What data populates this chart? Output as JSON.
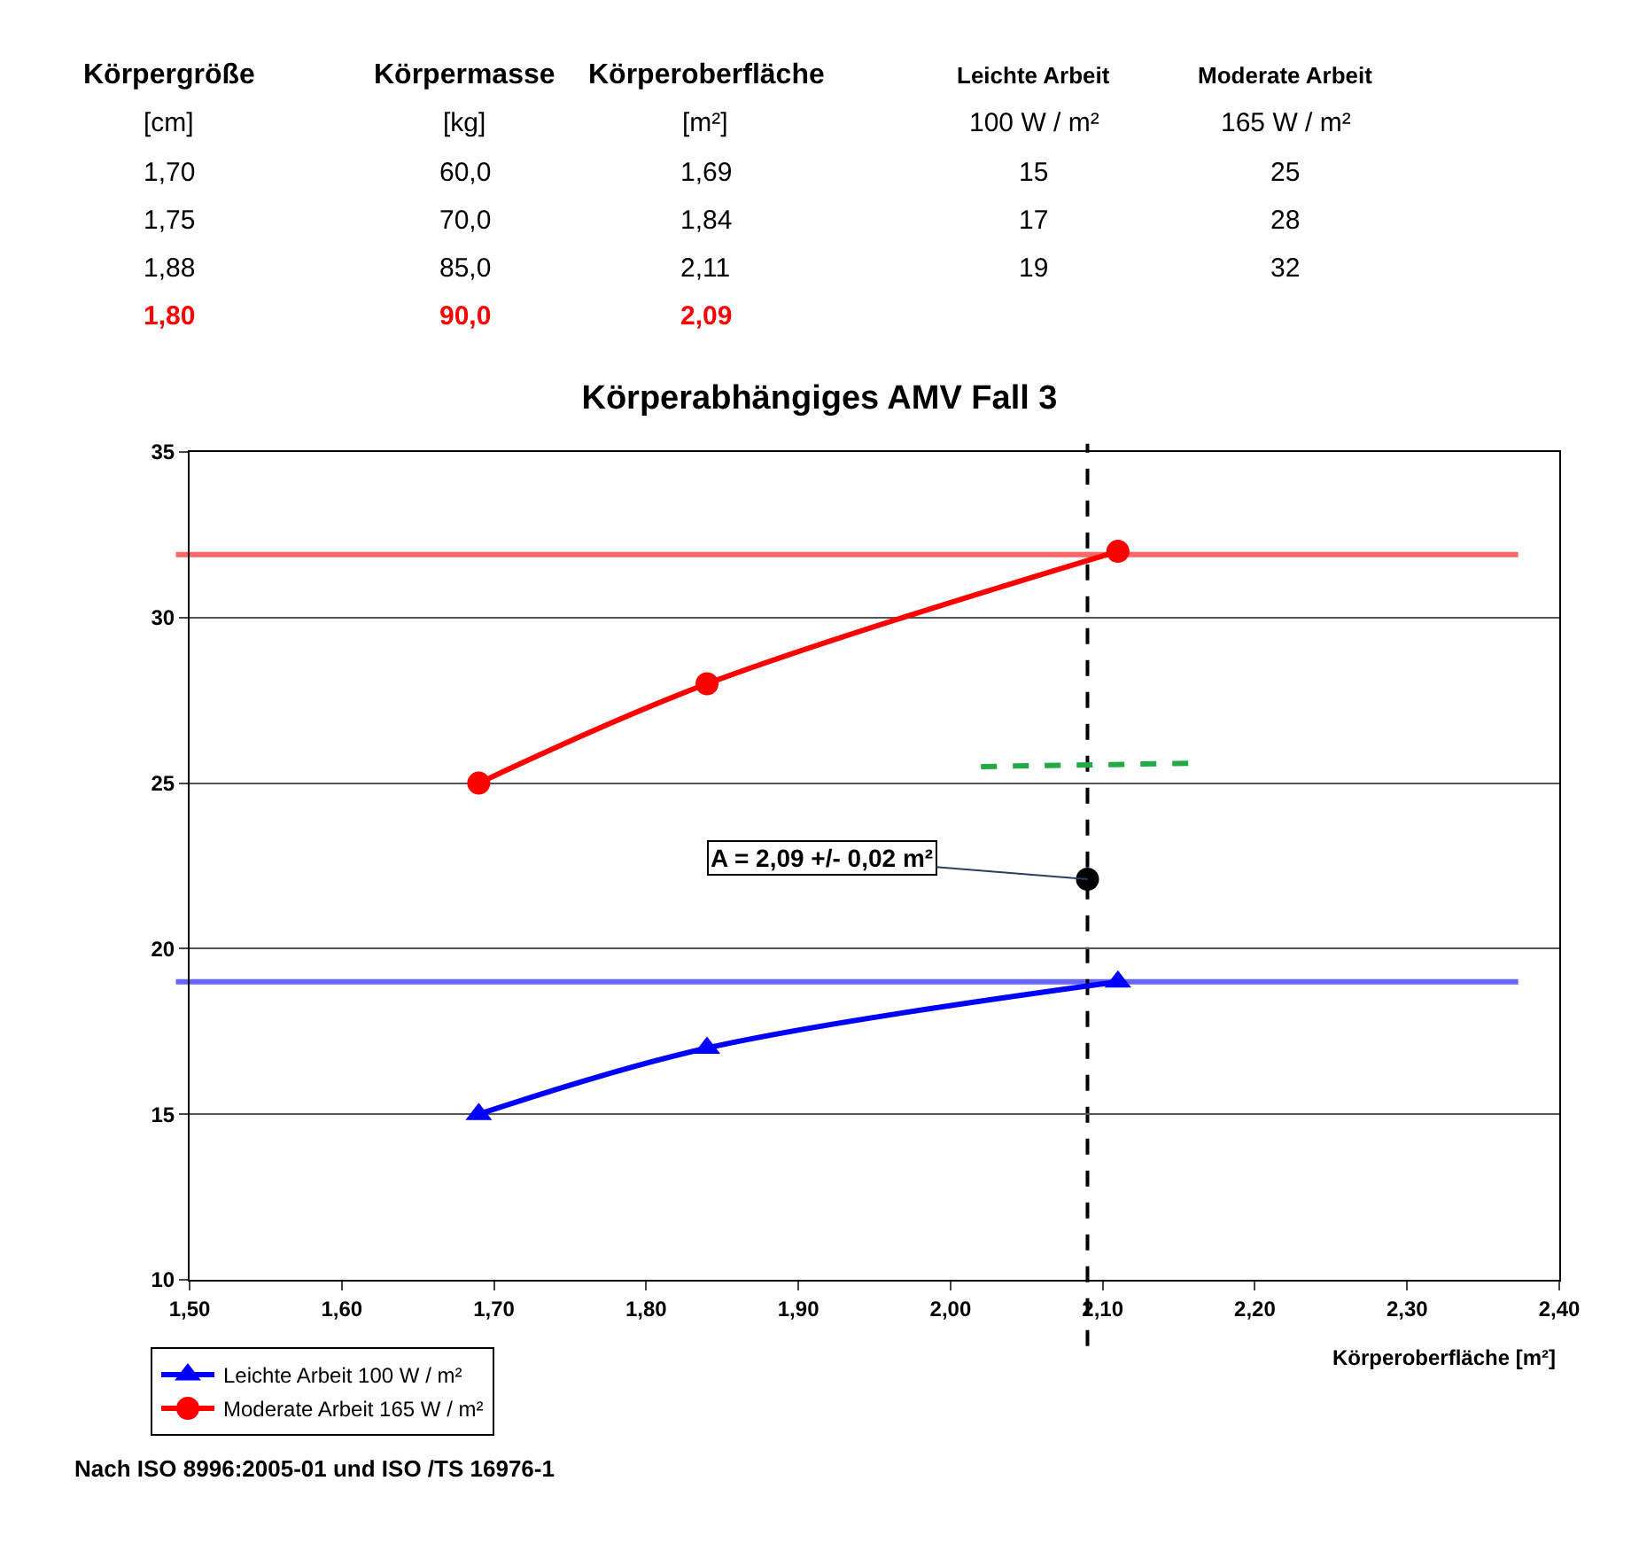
{
  "chart_data": {
    "type": "line",
    "title": "Körperabhängiges AMV Fall 3",
    "xlabel": "Körperoberfläche [m²]",
    "xlim": [
      1.5,
      2.4
    ],
    "xticks": [
      {
        "value": 1.5,
        "label": "1,50"
      },
      {
        "value": 1.6,
        "label": "1,60"
      },
      {
        "value": 1.7,
        "label": "1,70"
      },
      {
        "value": 1.8,
        "label": "1,80"
      },
      {
        "value": 1.9,
        "label": "1,90"
      },
      {
        "value": 2.0,
        "label": "2,00"
      },
      {
        "value": 2.1,
        "label": "2,10"
      },
      {
        "value": 2.2,
        "label": "2,20"
      },
      {
        "value": 2.3,
        "label": "2,30"
      },
      {
        "value": 2.4,
        "label": "2,40"
      }
    ],
    "ylim": [
      10,
      35
    ],
    "yticks": [
      10,
      15,
      20,
      25,
      30,
      35
    ],
    "grid": "y",
    "legend": "bottom left",
    "series": [
      {
        "name": "Leichte Arbeit 100 W / m²",
        "color": "#0000ff",
        "marker": "triangle",
        "x": [
          1.69,
          1.84,
          2.11
        ],
        "values": [
          15,
          17,
          19
        ]
      },
      {
        "name": "Moderate Arbeit 165 W / m²",
        "color": "#ff0000",
        "marker": "circle",
        "x": [
          1.69,
          1.84,
          2.11
        ],
        "values": [
          25,
          28,
          32
        ]
      },
      {
        "color": "#22aa44",
        "marker": "none",
        "line_style": "dashed",
        "x": [
          2.02,
          2.16
        ],
        "values": [
          25.5,
          25.6
        ]
      },
      {
        "type": "scatter",
        "color": "#000000",
        "marker": "circle",
        "x": [
          2.09
        ],
        "values": [
          22.1
        ]
      }
    ],
    "ref_lines": [
      {
        "axis": "y",
        "value": 31.9,
        "color": "#ff6666"
      },
      {
        "axis": "y",
        "value": 19.0,
        "color": "#6666ff"
      },
      {
        "axis": "x",
        "value": 2.09,
        "color": "#000000",
        "line_style": "dashed"
      }
    ],
    "annotations": [
      "Nach ISO 8996:2005-01 und ISO /TS 16976-1",
      {
        "text": "A = 2,09 +/- 0,02 m²",
        "x": 2.09,
        "y": 22.1
      },
      "Körpergröße",
      "Körpermasse",
      "Körperoberfläche",
      "Leichte Arbeit",
      "Moderate Arbeit",
      "[cm]",
      "[kg]",
      "[m²]",
      "100 W / m²",
      "165 W / m²",
      "1,70",
      "60,0",
      "1,69",
      "15",
      "25",
      "1,75",
      "70,0",
      "1,84",
      "17",
      "28",
      "1,88",
      "85,0",
      "2,11",
      "19",
      "32",
      "1,80",
      "90,0",
      "2,09"
    ]
  }
}
